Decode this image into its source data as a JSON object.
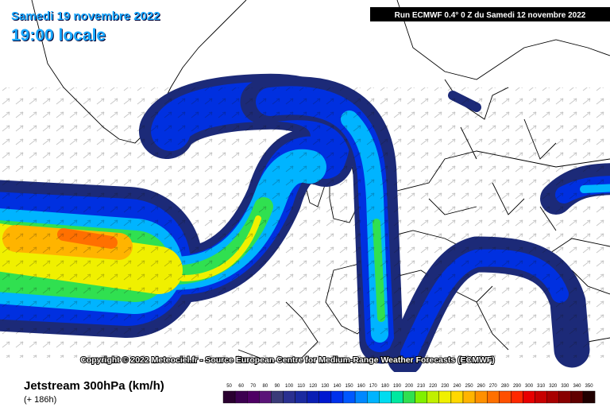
{
  "header": {
    "date": "Samedi 19 novembre 2022",
    "time": "19:00 locale",
    "run": "Run ECMWF 0.4° 0 Z du Samedi 12 novembre 2022"
  },
  "copyright": "Copyright © 2022 Meteociel.fr - Source European Centre for Medium-Range Weather Forecasts (ECMWF)",
  "footer": {
    "parameter": "Jetstream 300hPa (km/h)",
    "lead_time": "(+ 186h)"
  },
  "legend": {
    "labels": [
      50,
      60,
      70,
      80,
      90,
      100,
      110,
      120,
      130,
      140,
      150,
      160,
      170,
      180,
      190,
      200,
      210,
      220,
      230,
      240,
      250,
      260,
      270,
      280,
      290,
      300,
      310,
      320,
      330,
      340,
      350
    ],
    "colors": [
      "#2a0030",
      "#3c0050",
      "#4e0064",
      "#5a1478",
      "#3a3a78",
      "#2a3090",
      "#1a2aa0",
      "#0a1eb4",
      "#0018d0",
      "#0030ec",
      "#0058ff",
      "#0088ff",
      "#00b4ff",
      "#00dcf0",
      "#00e8a0",
      "#30e050",
      "#80f000",
      "#c0f000",
      "#f0f000",
      "#ffd800",
      "#ffb400",
      "#ff9000",
      "#ff7000",
      "#ff5000",
      "#ff2800",
      "#e80000",
      "#c80000",
      "#a80000",
      "#880000",
      "#600000",
      "#200000"
    ]
  }
}
